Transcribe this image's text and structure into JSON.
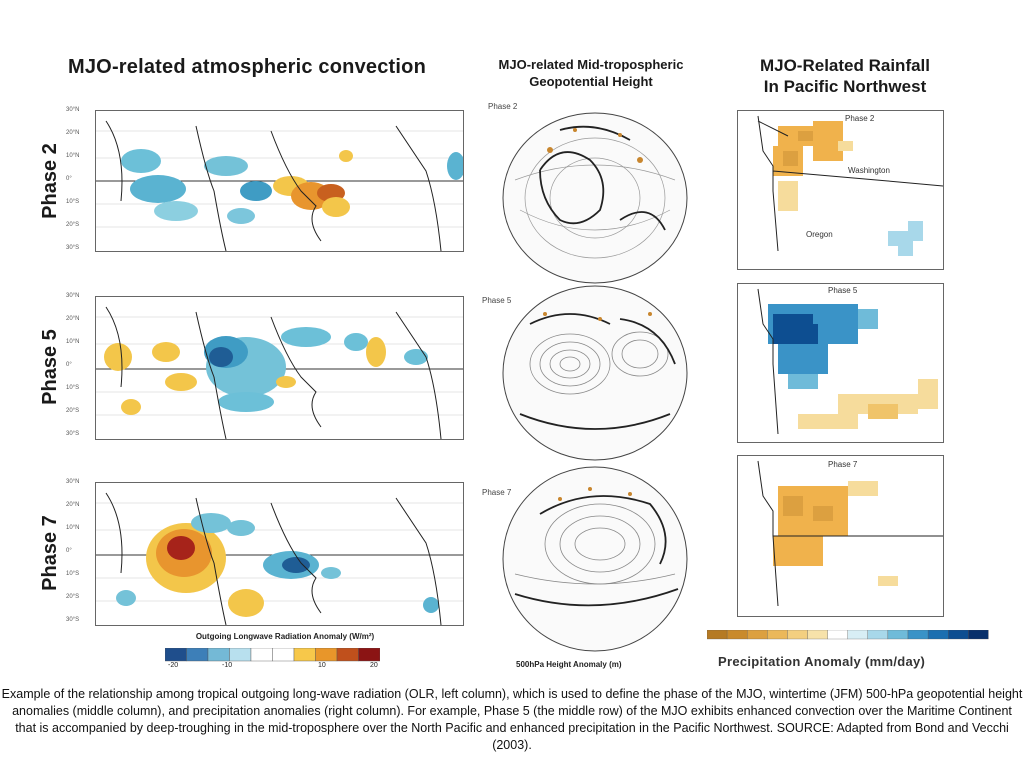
{
  "headers": {
    "left": "MJO-related atmospheric convection",
    "middle_line1": "MJO-related Mid-tropospheric",
    "middle_line2": "Geopotential Height",
    "right_line1": "MJO-Related Rainfall",
    "right_line2": "In Pacific Northwest"
  },
  "rows": [
    {
      "phase": "Phase 2",
      "globe_label": "Phase 2",
      "wa_label": "Phase 2"
    },
    {
      "phase": "Phase 5",
      "globe_label": "Phase 5",
      "wa_label": "Phase 5"
    },
    {
      "phase": "Phase 7",
      "globe_label": "Phase 7",
      "wa_label": "Phase 7"
    }
  ],
  "latitudes": [
    "30°N",
    "20°N",
    "10°N",
    "0°",
    "10°S",
    "20°S",
    "30°S"
  ],
  "states": {
    "washington": "Washington",
    "oregon": "Oregon"
  },
  "olr_colorbar": {
    "title": "Outgoing Longwave Radiation Anomaly (W/m²)",
    "ticks": [
      "-20",
      "-10",
      "10",
      "20"
    ],
    "colors": [
      "#1f4e8c",
      "#3d7fb8",
      "#74b9d6",
      "#b8e0ee",
      "#ffffff",
      "#ffffff",
      "#f7c84a",
      "#e8962a",
      "#c0501c",
      "#8b1414"
    ]
  },
  "height_label": "500hPa Height Anomaly (m)",
  "precip_colorbar": {
    "title": "Precipitation Anomaly (mm/day)",
    "colors": [
      "#b57a24",
      "#c98a2c",
      "#dca040",
      "#ebb85a",
      "#f3cf80",
      "#f7e2aa",
      "#ffffff",
      "#d8eef5",
      "#a8d8ea",
      "#6fbbd9",
      "#3a93c7",
      "#1c6fb0",
      "#0d4e91",
      "#08306b"
    ]
  },
  "caption": "Example of the relationship among tropical outgoing long-wave radiation (OLR, left column), which is used to define the phase of the MJO, wintertime (JFM) 500-hPa geopotential height anomalies (middle column), and precipitation anomalies (right column). For example, Phase 5 (the middle row) of the MJO exhibits enhanced convection over the Maritime Continent that is accompanied by deep-troughing in the mid-troposphere over the North Pacific and enhanced precipitation in the Pacific Northwest. SOURCE: Adapted from Bond and Vecchi (2003)."
}
